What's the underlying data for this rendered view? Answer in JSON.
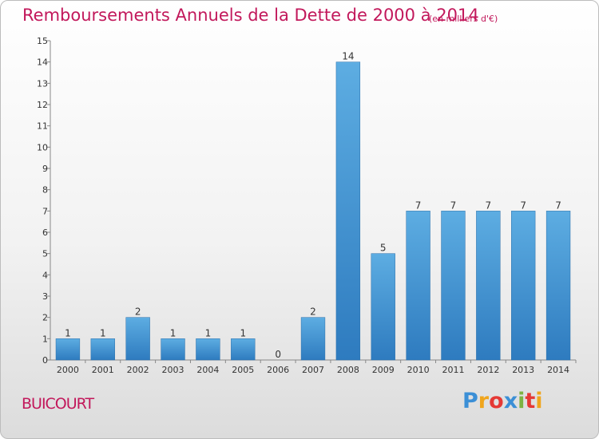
{
  "title": "Remboursements Annuels de la Dette de 2000 à 2014",
  "subtitle": "(en milliers d'€)",
  "commune": "BUICOURT",
  "logo": {
    "letters": [
      "P",
      "r",
      "o",
      "x",
      "i",
      "t",
      "i"
    ],
    "colors": [
      "#3b8fd6",
      "#f0a51c",
      "#e53935",
      "#3b8fd6",
      "#7cb342",
      "#e53935",
      "#f0a51c"
    ]
  },
  "chart_data": {
    "type": "bar",
    "title": "Remboursements Annuels de la Dette de 2000 à 2014",
    "subtitle": "(en milliers d'€)",
    "xlabel": "",
    "ylabel": "",
    "categories": [
      "2000",
      "2001",
      "2002",
      "2003",
      "2004",
      "2005",
      "2006",
      "2007",
      "2008",
      "2009",
      "2010",
      "2011",
      "2012",
      "2013",
      "2014"
    ],
    "values": [
      1,
      1,
      2,
      1,
      1,
      1,
      0,
      2,
      14,
      5,
      7,
      7,
      7,
      7,
      7
    ],
    "data_labels": [
      "1",
      "1",
      "2",
      "1",
      "1",
      "1",
      "0",
      "2",
      "14",
      "5",
      "7",
      "7",
      "7",
      "7",
      "7"
    ],
    "ylim": [
      0,
      15
    ],
    "yticks": [
      0,
      1,
      2,
      3,
      4,
      5,
      6,
      7,
      8,
      9,
      10,
      11,
      12,
      13,
      14,
      15
    ],
    "grid": false,
    "legend": "none",
    "bar_color_top": "#5dade2",
    "bar_color_bottom": "#2e7bbf"
  }
}
